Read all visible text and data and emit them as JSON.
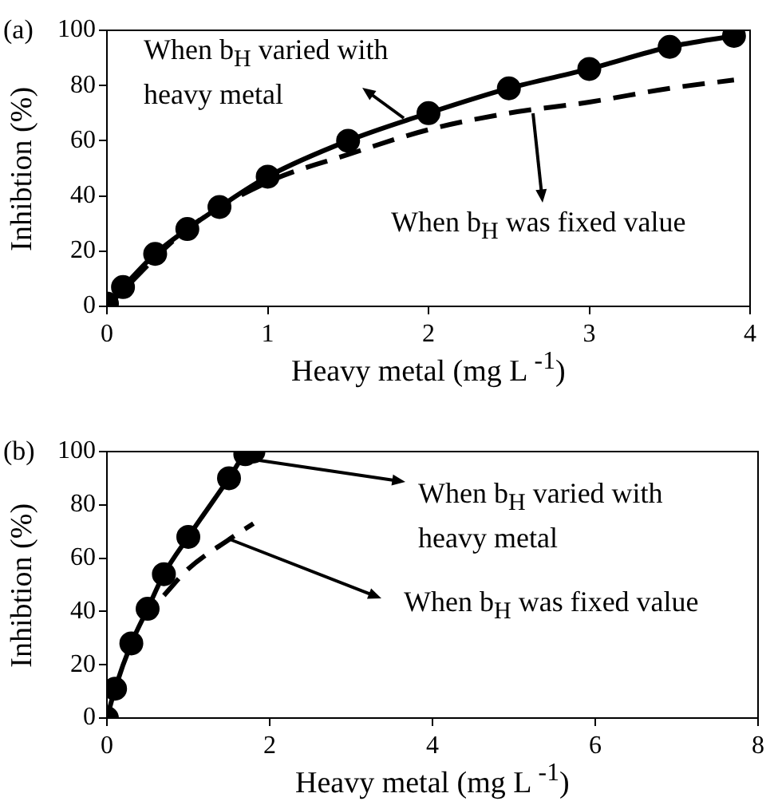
{
  "chart_data": [
    {
      "type": "scatter",
      "title": "(a)",
      "xlabel": "Heavy metal (mg L $^{-1}$)",
      "ylabel": "Inhibtion (%)",
      "xlim": [
        0,
        4
      ],
      "xticks": [
        0,
        1,
        2,
        3,
        4
      ],
      "ylim": [
        0,
        100
      ],
      "yticks": [
        0,
        20,
        40,
        60,
        80,
        100
      ],
      "grid": false,
      "series": [
        {
          "type": "line",
          "color": "#000000",
          "line_style": "solid",
          "marker": "none",
          "x": [
            0,
            0.1,
            0.3,
            0.5,
            0.7,
            1,
            1.5,
            2,
            2.5,
            3,
            3.5,
            3.9
          ],
          "values": [
            1,
            7,
            19,
            28,
            36,
            47,
            60,
            70,
            79,
            86,
            94,
            98
          ]
        },
        {
          "type": "line",
          "color": "#000000",
          "line_style": "dashed",
          "marker": "none",
          "x": [
            0,
            0.5,
            1,
            1.5,
            2,
            2.5,
            3,
            3.5,
            3.9
          ],
          "values": [
            0,
            28,
            45,
            55,
            64,
            70,
            74,
            79,
            82
          ]
        },
        {
          "type": "scatter",
          "color": "#000000",
          "marker": "circle",
          "x": [
            0,
            0.1,
            0.3,
            0.5,
            0.7,
            1,
            1.5,
            2,
            2.5,
            3,
            3.5,
            3.9
          ],
          "values": [
            1,
            7,
            19,
            28,
            36,
            47,
            60,
            70,
            79,
            86,
            94,
            98
          ]
        }
      ],
      "annotations": [
        {
          "text": "When b$_{H}$ varied with heavy metal",
          "x": 1.85,
          "y": 68
        },
        {
          "text": "When b$_{H}$ was fixed value",
          "x": 2.65,
          "y": 70
        }
      ]
    },
    {
      "type": "scatter",
      "title": "(b)",
      "xlabel": "Heavy metal (mg L $^{-1}$)",
      "ylabel": "Inhibtion (%)",
      "xlim": [
        0,
        8
      ],
      "xticks": [
        0,
        2,
        4,
        6,
        8
      ],
      "ylim": [
        0,
        100
      ],
      "yticks": [
        0,
        20,
        40,
        60,
        80,
        100
      ],
      "grid": false,
      "series": [
        {
          "type": "line",
          "color": "#000000",
          "line_style": "solid",
          "marker": "none",
          "x": [
            0,
            0.1,
            0.3,
            0.5,
            0.7,
            1,
            1.5,
            1.7,
            1.8
          ],
          "values": [
            0,
            11,
            28,
            41,
            54,
            68,
            90,
            99,
            100
          ]
        },
        {
          "type": "line",
          "color": "#000000",
          "line_style": "dashed",
          "marker": "none",
          "x": [
            0.7,
            1,
            1.5,
            1.8
          ],
          "values": [
            46,
            56,
            67,
            73
          ]
        },
        {
          "type": "scatter",
          "color": "#000000",
          "marker": "circle",
          "x": [
            0,
            0.1,
            0.3,
            0.5,
            0.7,
            1,
            1.5,
            1.7,
            1.8
          ],
          "values": [
            0,
            11,
            28,
            41,
            54,
            68,
            90,
            99,
            100
          ]
        }
      ],
      "annotations": [
        {
          "text": "When b$_{H}$ varied with heavy metal",
          "x": 1.8,
          "y": 97
        },
        {
          "text": "When b$_{H}$ was fixed value",
          "x": 1.5,
          "y": 67
        }
      ]
    }
  ]
}
